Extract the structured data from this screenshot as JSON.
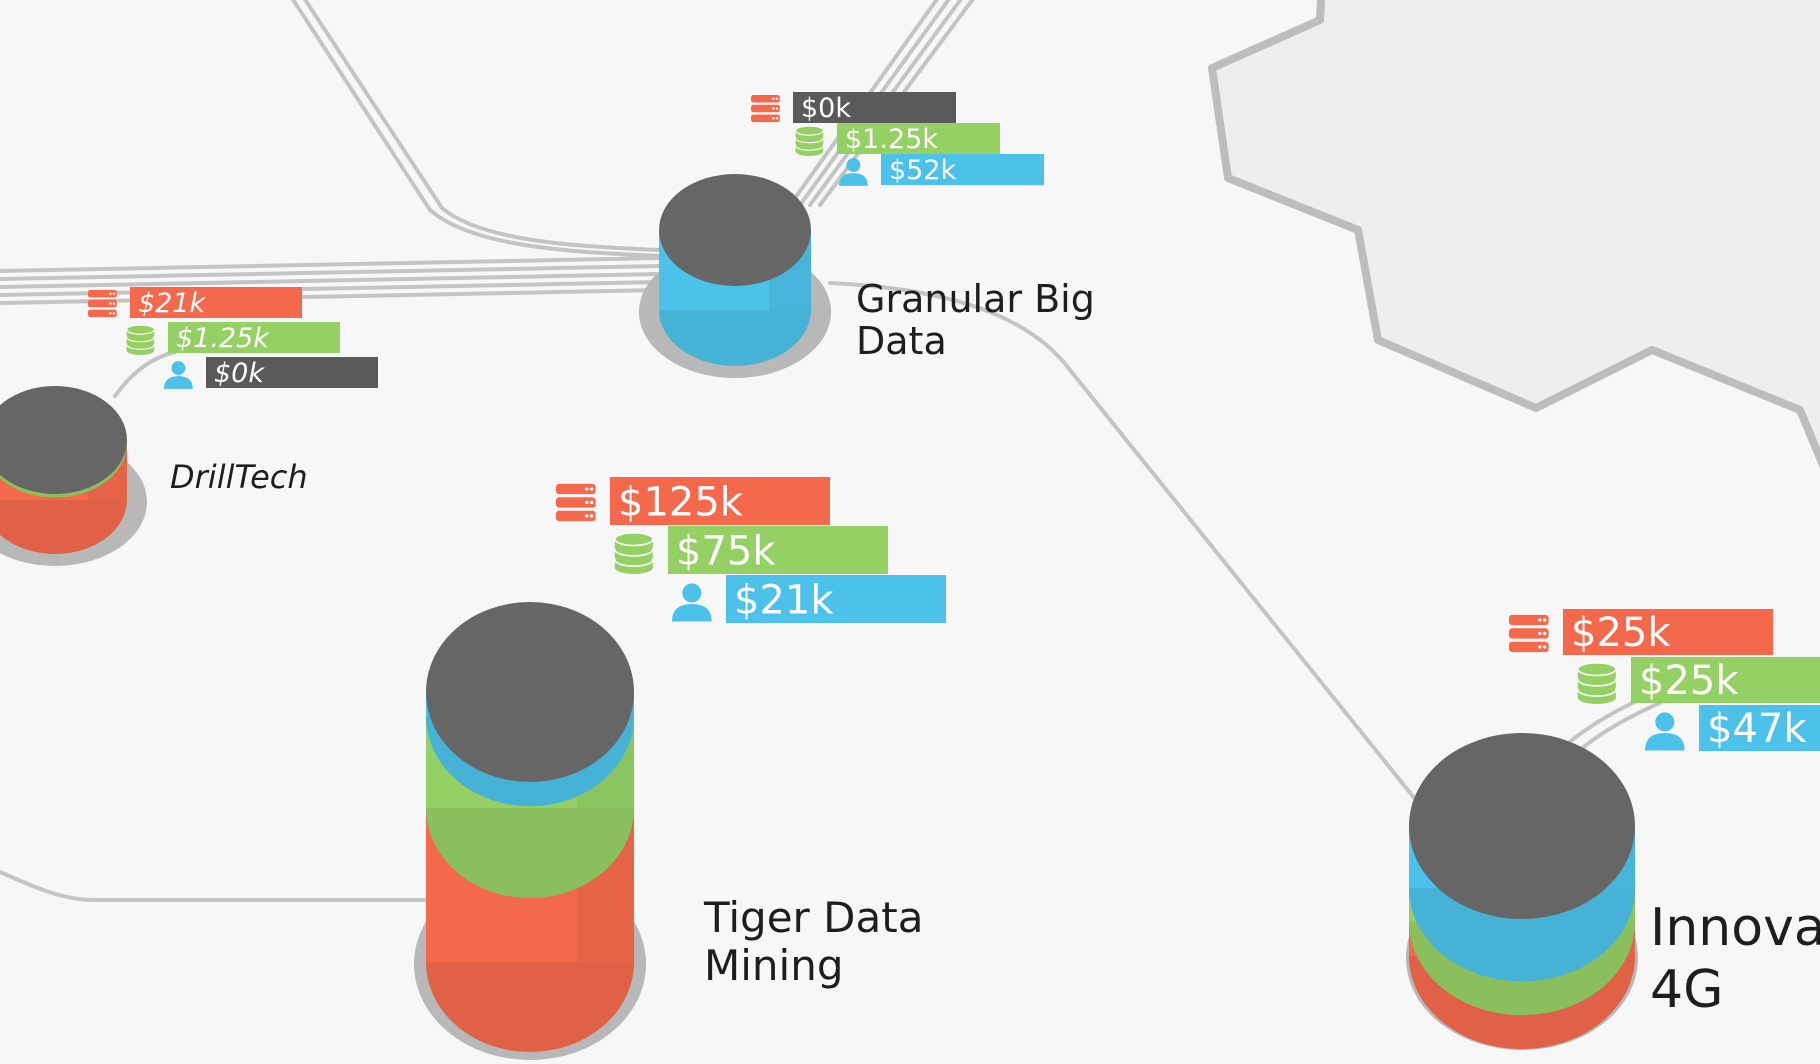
{
  "colors": {
    "background": "#f7f7f7",
    "region": "#eeeeee",
    "region_border": "#bdbdbd",
    "link": "#c4c4c4",
    "top": "#666666",
    "shadow": "#b8b8b8",
    "servers": "#f4694b",
    "storage": "#95d064",
    "people": "#4cc1e9",
    "zero": "#5a5a5a",
    "label": "#1e1e1e"
  },
  "metric_icons": [
    "server-stack-icon",
    "database-icon",
    "user-icon"
  ],
  "nodes": [
    {
      "id": "granular-big-data",
      "label_lines": [
        "Granular Big",
        "Data"
      ],
      "label_italic": false,
      "metrics": {
        "servers": "$0k",
        "storage": "$1.25k",
        "people": "$52k"
      },
      "stack_fractions": {
        "servers": 0,
        "storage": 0,
        "people": 1
      }
    },
    {
      "id": "drilltech",
      "label_lines": [
        "DrillTech"
      ],
      "label_italic": true,
      "metrics": {
        "servers": "$21k",
        "storage": "$1.25k",
        "people": "$0k"
      },
      "stack_fractions": {
        "servers": 0.94,
        "storage": 0.06,
        "people": 0
      }
    },
    {
      "id": "tiger-data-mining",
      "label_lines": [
        "Tiger Data",
        "Mining"
      ],
      "label_italic": false,
      "metrics": {
        "servers": "$125k",
        "storage": "$75k",
        "people": "$21k"
      },
      "stack_fractions": {
        "servers": 0.57,
        "storage": 0.34,
        "people": 0.09
      }
    },
    {
      "id": "innova-4g",
      "label_lines": [
        "Innova",
        "4G"
      ],
      "label_italic": false,
      "metrics": {
        "servers": "$25k",
        "storage": "$25k",
        "people": "$47k"
      },
      "stack_fractions": {
        "servers": 0.26,
        "storage": 0.26,
        "people": 0.48
      }
    }
  ]
}
